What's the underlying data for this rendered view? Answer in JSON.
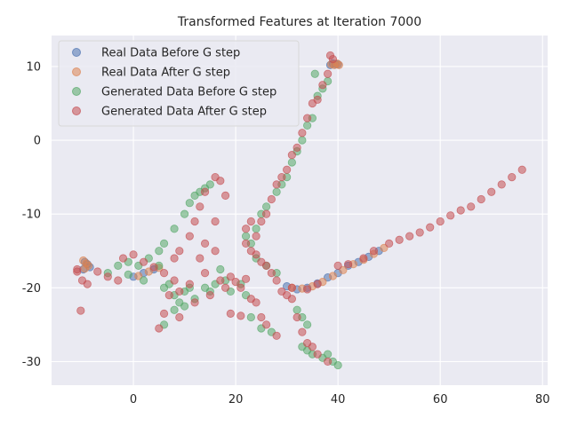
{
  "chart_data": {
    "type": "scatter",
    "title": "Transformed Features at Iteration 7000",
    "xlabel": "",
    "ylabel": "",
    "xlim": [
      -16,
      81
    ],
    "ylim": [
      -33.2,
      14.2
    ],
    "xticks": [
      0,
      20,
      40,
      60,
      80
    ],
    "yticks": [
      -30,
      -20,
      -10,
      0,
      10
    ],
    "grid": true,
    "legend_position": "top-left",
    "series": [
      {
        "name": "Real Data Before G step",
        "color": "#4C72B0",
        "points": [
          [
            -9.5,
            -16.5
          ],
          [
            -9,
            -16.8
          ],
          [
            -8.5,
            -17.2
          ],
          [
            -9.8,
            -17.5
          ],
          [
            0,
            -18.5
          ],
          [
            2,
            -18
          ],
          [
            4,
            -17.5
          ],
          [
            30,
            -19.8
          ],
          [
            32,
            -20.2
          ],
          [
            34,
            -20
          ],
          [
            36,
            -19.4
          ],
          [
            38,
            -18.6
          ],
          [
            40,
            -18
          ],
          [
            42,
            -17
          ],
          [
            44,
            -16.5
          ],
          [
            46,
            -15.8
          ],
          [
            48,
            -15
          ],
          [
            38.5,
            10.2
          ],
          [
            39,
            10.4
          ],
          [
            39.5,
            10.3
          ],
          [
            40,
            10.3
          ]
        ]
      },
      {
        "name": "Real Data After G step",
        "color": "#DD8452",
        "points": [
          [
            -9.8,
            -16.3
          ],
          [
            -9.2,
            -16.7
          ],
          [
            -8.8,
            -17
          ],
          [
            -9.5,
            -17.4
          ],
          [
            1,
            -18.4
          ],
          [
            3,
            -17.8
          ],
          [
            5,
            -17.3
          ],
          [
            31,
            -20
          ],
          [
            33,
            -20.1
          ],
          [
            35,
            -19.8
          ],
          [
            37,
            -19.2
          ],
          [
            39,
            -18.4
          ],
          [
            41,
            -17.6
          ],
          [
            43,
            -16.8
          ],
          [
            45,
            -16.2
          ],
          [
            47,
            -15.4
          ],
          [
            49,
            -14.6
          ],
          [
            38.7,
            10.3
          ],
          [
            39.3,
            10.2
          ],
          [
            39.8,
            10.4
          ],
          [
            40.2,
            10.2
          ]
        ]
      },
      {
        "name": "Generated Data Before G step",
        "color": "#55A868",
        "points": [
          [
            -5,
            -18
          ],
          [
            -3,
            -17
          ],
          [
            -1,
            -16.5
          ],
          [
            1,
            -17
          ],
          [
            3,
            -16
          ],
          [
            5,
            -15
          ],
          [
            6,
            -14
          ],
          [
            8,
            -12
          ],
          [
            10,
            -10
          ],
          [
            11,
            -8.5
          ],
          [
            12,
            -7.5
          ],
          [
            13,
            -7
          ],
          [
            14,
            -6.5
          ],
          [
            15,
            -6
          ],
          [
            6,
            -20
          ],
          [
            7,
            -19.5
          ],
          [
            8,
            -21
          ],
          [
            9,
            -22
          ],
          [
            10,
            -20.5
          ],
          [
            12,
            -21.5
          ],
          [
            14,
            -20
          ],
          [
            16,
            -19.5
          ],
          [
            17,
            -17.5
          ],
          [
            18,
            -19
          ],
          [
            19,
            -20.5
          ],
          [
            21,
            -19.5
          ],
          [
            22,
            -21
          ],
          [
            23,
            -24
          ],
          [
            25,
            -25.5
          ],
          [
            27,
            -26
          ],
          [
            6,
            -25
          ],
          [
            8,
            -23
          ],
          [
            10,
            -22.5
          ],
          [
            11,
            -20
          ],
          [
            15,
            -20.5
          ],
          [
            33,
            -28
          ],
          [
            34,
            -28.5
          ],
          [
            35,
            -29
          ],
          [
            37,
            -29.5
          ],
          [
            38,
            -29
          ],
          [
            39,
            -30
          ],
          [
            40,
            -30.5
          ],
          [
            32,
            -23
          ],
          [
            33,
            -24
          ],
          [
            34,
            -25
          ],
          [
            22,
            -13
          ],
          [
            23,
            -14
          ],
          [
            24,
            -12
          ],
          [
            25,
            -10
          ],
          [
            26,
            -9
          ],
          [
            28,
            -7
          ],
          [
            29,
            -6
          ],
          [
            30,
            -5
          ],
          [
            31,
            -3
          ],
          [
            32,
            -1.5
          ],
          [
            33,
            0
          ],
          [
            34,
            2
          ],
          [
            35,
            3
          ],
          [
            35.5,
            9
          ],
          [
            36,
            6
          ],
          [
            37,
            7
          ],
          [
            38,
            8
          ],
          [
            24,
            -16
          ],
          [
            26,
            -17
          ],
          [
            28,
            -18
          ],
          [
            -1,
            -18.2
          ],
          [
            2,
            -19
          ],
          [
            5,
            -17
          ]
        ]
      },
      {
        "name": "Generated Data After G step",
        "color": "#C44E52",
        "points": [
          [
            -11,
            -17.8
          ],
          [
            -10,
            -19
          ],
          [
            -9,
            -19.5
          ],
          [
            -10.3,
            -23.1
          ],
          [
            -7,
            -17.8
          ],
          [
            -5,
            -18.5
          ],
          [
            -3,
            -19
          ],
          [
            -2,
            -16
          ],
          [
            0,
            -15.5
          ],
          [
            2,
            -16.5
          ],
          [
            4,
            -17.2
          ],
          [
            6,
            -18
          ],
          [
            8,
            -16
          ],
          [
            9,
            -15
          ],
          [
            11,
            -13
          ],
          [
            12,
            -11
          ],
          [
            13,
            -9
          ],
          [
            14,
            -7
          ],
          [
            16,
            -5
          ],
          [
            17,
            -5.5
          ],
          [
            18,
            -7.5
          ],
          [
            7,
            -21
          ],
          [
            8,
            -19
          ],
          [
            9,
            -20.5
          ],
          [
            11,
            -19.5
          ],
          [
            12,
            -22
          ],
          [
            14,
            -18
          ],
          [
            15,
            -21
          ],
          [
            16,
            -11
          ],
          [
            17,
            -19
          ],
          [
            18,
            -20
          ],
          [
            19,
            -18.5
          ],
          [
            20,
            -19.2
          ],
          [
            21,
            -20
          ],
          [
            22,
            -18.8
          ],
          [
            23,
            -21.5
          ],
          [
            24,
            -22
          ],
          [
            25,
            -24
          ],
          [
            26,
            -25
          ],
          [
            28,
            -26.5
          ],
          [
            5,
            -25.5
          ],
          [
            6,
            -23.5
          ],
          [
            9,
            -24
          ],
          [
            13,
            -16
          ],
          [
            14,
            -14
          ],
          [
            16,
            -15
          ],
          [
            21,
            -23.8
          ],
          [
            19,
            -23.5
          ],
          [
            22,
            -14
          ],
          [
            23,
            -15
          ],
          [
            24,
            -15.5
          ],
          [
            25,
            -16.5
          ],
          [
            26,
            -17
          ],
          [
            27,
            -18
          ],
          [
            28,
            -19
          ],
          [
            29,
            -20.5
          ],
          [
            30,
            -21
          ],
          [
            31,
            -21.5
          ],
          [
            32,
            -24
          ],
          [
            33,
            -26
          ],
          [
            34,
            -27.5
          ],
          [
            35,
            -28
          ],
          [
            36,
            -29
          ],
          [
            38,
            -30
          ],
          [
            22,
            -12
          ],
          [
            23,
            -11
          ],
          [
            24,
            -13
          ],
          [
            25,
            -11
          ],
          [
            26,
            -10
          ],
          [
            27,
            -8
          ],
          [
            28,
            -6
          ],
          [
            29,
            -5
          ],
          [
            30,
            -4
          ],
          [
            31,
            -2
          ],
          [
            32,
            -1
          ],
          [
            33,
            1
          ],
          [
            34,
            3
          ],
          [
            35,
            5
          ],
          [
            36,
            5.5
          ],
          [
            37,
            7.5
          ],
          [
            38,
            9
          ],
          [
            38.5,
            11.5
          ],
          [
            39,
            11
          ],
          [
            40,
            -17
          ],
          [
            42,
            -16.8
          ],
          [
            45,
            -16
          ],
          [
            47,
            -15
          ],
          [
            50,
            -14
          ],
          [
            52,
            -13.5
          ],
          [
            54,
            -13
          ],
          [
            56,
            -12.5
          ],
          [
            58,
            -11.8
          ],
          [
            60,
            -11
          ],
          [
            62,
            -10.2
          ],
          [
            64,
            -9.5
          ],
          [
            66,
            -9
          ],
          [
            68,
            -8
          ],
          [
            70,
            -7
          ],
          [
            72,
            -6
          ],
          [
            74,
            -5
          ],
          [
            76,
            -4
          ],
          [
            31,
            -20
          ],
          [
            34,
            -20.2
          ],
          [
            36,
            -19.5
          ],
          [
            -11,
            -17.5
          ]
        ]
      }
    ]
  }
}
